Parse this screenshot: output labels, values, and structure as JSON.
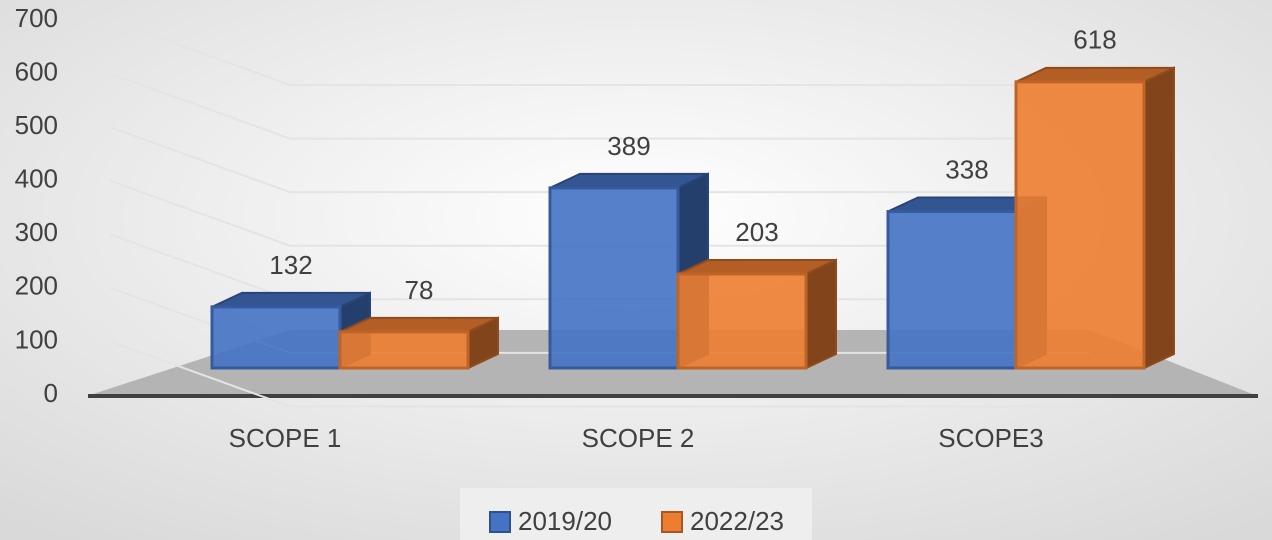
{
  "chart_data": {
    "type": "bar3d",
    "categories": [
      "SCOPE 1",
      "SCOPE 2",
      "SCOPE3"
    ],
    "series": [
      {
        "name": "2019/20",
        "color": "#4472c4",
        "values": [
          132,
          389,
          338
        ]
      },
      {
        "name": "2022/23",
        "color": "#ed7d31",
        "values": [
          78,
          203,
          618
        ]
      }
    ],
    "ylim": [
      0,
      700
    ],
    "yticks": [
      0,
      100,
      200,
      300,
      400,
      500,
      600,
      700
    ],
    "grid": true,
    "legend": "bottom"
  }
}
